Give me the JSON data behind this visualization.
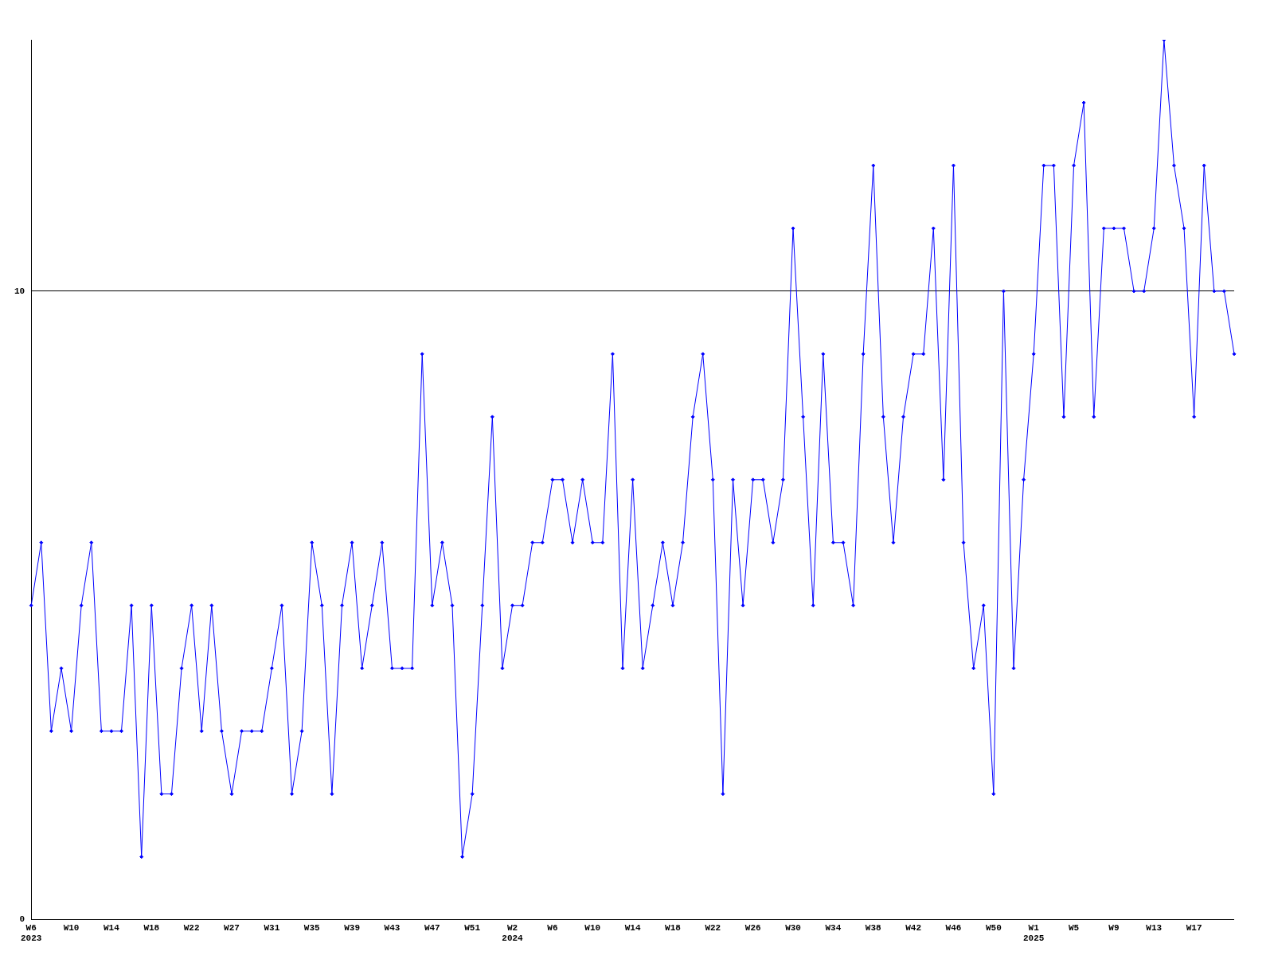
{
  "chart_data": {
    "type": "line",
    "categories": [
      "W6\n2023",
      null,
      null,
      null,
      "W10",
      null,
      null,
      null,
      "W14",
      null,
      null,
      null,
      "W18",
      null,
      null,
      null,
      "W22",
      null,
      null,
      null,
      "W27",
      null,
      null,
      null,
      "W31",
      null,
      null,
      null,
      "W35",
      null,
      null,
      null,
      "W39",
      null,
      null,
      null,
      "W43",
      null,
      null,
      null,
      "W47",
      null,
      null,
      null,
      "W51",
      null,
      null,
      null,
      "W2\n2024",
      null,
      null,
      null,
      "W6",
      null,
      null,
      null,
      "W10",
      null,
      null,
      null,
      "W14",
      null,
      null,
      null,
      "W18",
      null,
      null,
      null,
      "W22",
      null,
      null,
      null,
      "W26",
      null,
      null,
      null,
      "W30",
      null,
      null,
      null,
      "W34",
      null,
      null,
      null,
      "W38",
      null,
      null,
      null,
      "W42",
      null,
      null,
      null,
      "W46",
      null,
      null,
      null,
      "W50",
      null,
      null,
      null,
      "W1\n2025",
      null,
      null,
      null,
      "W5",
      null,
      null,
      null,
      "W9",
      null,
      null,
      null,
      "W13",
      null,
      null,
      null,
      "W17",
      null,
      null,
      null,
      null
    ],
    "series": [
      {
        "color": "#0000ff",
        "values": [
          5,
          6,
          3,
          4,
          3,
          5,
          6,
          3,
          3,
          3,
          5,
          1,
          5,
          2,
          2,
          4,
          5,
          3,
          5,
          3,
          2,
          3,
          3,
          3,
          4,
          5,
          2,
          3,
          6,
          5,
          2,
          5,
          6,
          4,
          5,
          6,
          4,
          4,
          4,
          9,
          5,
          6,
          5,
          1,
          2,
          5,
          8,
          4,
          5,
          5,
          6,
          6,
          7,
          7,
          6,
          7,
          6,
          6,
          9,
          4,
          7,
          4,
          5,
          6,
          5,
          6,
          8,
          9,
          7,
          2,
          7,
          5,
          7,
          7,
          6,
          7,
          11,
          8,
          5,
          9,
          6,
          6,
          5,
          9,
          12,
          8,
          6,
          8,
          9,
          9,
          11,
          7,
          12,
          6,
          4,
          5,
          2,
          10,
          4,
          7,
          9,
          12,
          12,
          8,
          12,
          13,
          8,
          11,
          11,
          11,
          10,
          10,
          11,
          14,
          12,
          11,
          8,
          12,
          10,
          10,
          9
        ]
      }
    ],
    "ylim": [
      0,
      14
    ],
    "yticks": [
      0,
      10
    ],
    "grid": "y",
    "marker": "diamond",
    "legend": false
  }
}
